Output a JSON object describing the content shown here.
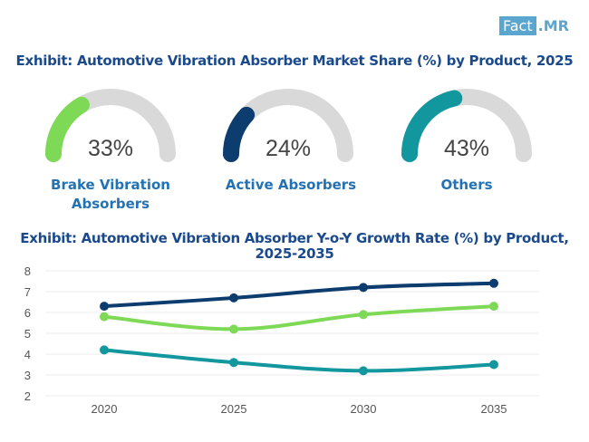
{
  "logo": {
    "part1": "Fact",
    "part2": ".MR"
  },
  "colors": {
    "title": "#1b4a8c",
    "label": "#2272b4",
    "track": "#d9d9d9",
    "green": "#7ed957",
    "navy": "#0d3c6e",
    "teal": "#13979e",
    "grid": "#eeeeee"
  },
  "chart_data": [
    {
      "type": "gauge",
      "title": "Exhibit: Automotive Vibration Absorber Market Share (%) by Product, 2025",
      "items": [
        {
          "label": "Brake Vibration Absorbers",
          "value": 33,
          "display": "33%",
          "color": "#7ed957"
        },
        {
          "label": "Active Absorbers",
          "value": 24,
          "display": "24%",
          "color": "#0d3c6e"
        },
        {
          "label": "Others",
          "value": 43,
          "display": "43%",
          "color": "#13979e"
        }
      ]
    },
    {
      "type": "line",
      "title": "Exhibit: Automotive Vibration Absorber Y-o-Y Growth Rate (%) by Product, 2025-2035",
      "x": [
        "2020",
        "2025",
        "2030",
        "2035"
      ],
      "ylim": [
        2,
        8
      ],
      "yticks": [
        2,
        3,
        4,
        5,
        6,
        7,
        8
      ],
      "grid": true,
      "legend": "none",
      "series": [
        {
          "name": "Active Absorbers",
          "color": "#0d3c6e",
          "values": [
            6.3,
            6.7,
            7.2,
            7.4
          ]
        },
        {
          "name": "Brake Vibration Absorbers",
          "color": "#7ed957",
          "values": [
            5.8,
            5.2,
            5.9,
            6.3
          ]
        },
        {
          "name": "Others",
          "color": "#13979e",
          "values": [
            4.2,
            3.6,
            3.2,
            3.5
          ]
        }
      ]
    }
  ]
}
